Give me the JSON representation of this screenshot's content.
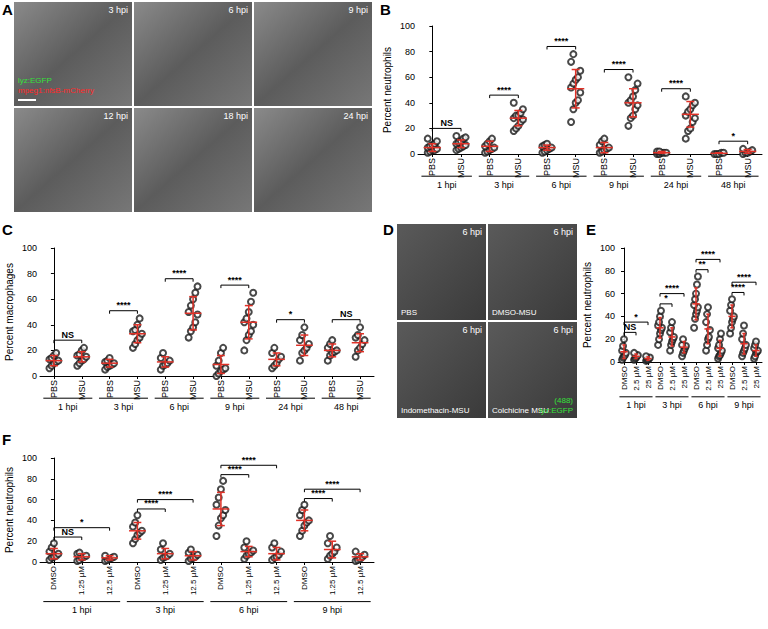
{
  "chart_data": [
    {
      "panel": "B",
      "type": "scatter",
      "y_label": "Percent neutrophils",
      "ylim": [
        0,
        100
      ],
      "yticks": [
        0,
        20,
        40,
        60,
        80,
        100
      ],
      "grid": false,
      "categories": [
        "PBS",
        "MSU",
        "PBS",
        "MSU",
        "PBS",
        "MSU",
        "PBS",
        "MSU",
        "PBS",
        "MSU",
        "PBS",
        "MSU"
      ],
      "groups": [
        {
          "label": "1 hpi",
          "members": [
            0,
            1
          ]
        },
        {
          "label": "3 hpi",
          "members": [
            2,
            3
          ]
        },
        {
          "label": "6 hpi",
          "members": [
            4,
            5
          ]
        },
        {
          "label": "9 hpi",
          "members": [
            6,
            7
          ]
        },
        {
          "label": "24 hpi",
          "members": [
            8,
            9
          ]
        },
        {
          "label": "48 hpi",
          "members": [
            10,
            11
          ]
        }
      ],
      "series": [
        {
          "type": "scatter",
          "marker": "open_circle",
          "color": "#1a1a1a",
          "values": [
            [
              1,
              2,
              3,
              3,
              4,
              5,
              6,
              7,
              8,
              10,
              12
            ],
            [
              3,
              4,
              5,
              6,
              7,
              8,
              9,
              10,
              12,
              13,
              14
            ],
            [
              1,
              2,
              3,
              4,
              5,
              6,
              8,
              10,
              12
            ],
            [
              18,
              20,
              22,
              25,
              27,
              28,
              30,
              30,
              32,
              35,
              40
            ],
            [
              1,
              2,
              3,
              4,
              5,
              6,
              7,
              8
            ],
            [
              25,
              35,
              40,
              42,
              48,
              52,
              55,
              58,
              60,
              65,
              72,
              78
            ],
            [
              1,
              2,
              3,
              4,
              5,
              7,
              10,
              12
            ],
            [
              22,
              28,
              30,
              35,
              38,
              40,
              42,
              45,
              50,
              55,
              60
            ],
            [
              0,
              0,
              1,
              1,
              1,
              2,
              2
            ],
            [
              12,
              18,
              20,
              25,
              28,
              30,
              33,
              35,
              38,
              40,
              45
            ],
            [
              0,
              0,
              0,
              1,
              1
            ],
            [
              0,
              1,
              1,
              2,
              3,
              4
            ]
          ]
        },
        {
          "type": "mean_sd",
          "color": "#e03127",
          "values": [
            5,
            8,
            6,
            28,
            5,
            51,
            5,
            40,
            1,
            31,
            0.5,
            2
          ],
          "sd": [
            3,
            3,
            4,
            6,
            2,
            15,
            4,
            11,
            1,
            10,
            0.5,
            1.5
          ]
        }
      ],
      "comparisons": [
        {
          "from": 0,
          "to": 1,
          "label": "NS"
        },
        {
          "from": 2,
          "to": 3,
          "label": "****"
        },
        {
          "from": 4,
          "to": 5,
          "label": "****"
        },
        {
          "from": 6,
          "to": 7,
          "label": "****"
        },
        {
          "from": 8,
          "to": 9,
          "label": "****"
        },
        {
          "from": 10,
          "to": 11,
          "label": "*"
        }
      ]
    },
    {
      "panel": "C",
      "type": "scatter",
      "y_label": "Percent macrophages",
      "ylim": [
        0,
        100
      ],
      "yticks": [
        0,
        20,
        40,
        60,
        80,
        100
      ],
      "grid": false,
      "categories": [
        "PBS",
        "MSU",
        "PBS",
        "MSU",
        "PBS",
        "MSU",
        "PBS",
        "MSU",
        "PBS",
        "MSU",
        "PBS",
        "MSU"
      ],
      "groups": [
        {
          "label": "1 hpi",
          "members": [
            0,
            1
          ]
        },
        {
          "label": "3 hpi",
          "members": [
            2,
            3
          ]
        },
        {
          "label": "6 hpi",
          "members": [
            4,
            5
          ]
        },
        {
          "label": "9 hpi",
          "members": [
            6,
            7
          ]
        },
        {
          "label": "24 hpi",
          "members": [
            8,
            9
          ]
        },
        {
          "label": "48 hpi",
          "members": [
            10,
            11
          ]
        }
      ],
      "series": [
        {
          "type": "scatter",
          "marker": "open_circle",
          "color": "#1a1a1a",
          "values": [
            [
              6,
              8,
              10,
              11,
              12,
              13,
              14,
              16,
              18
            ],
            [
              8,
              10,
              12,
              13,
              15,
              16,
              17,
              20,
              22
            ],
            [
              5,
              7,
              8,
              9,
              10,
              11,
              12,
              14
            ],
            [
              22,
              25,
              28,
              30,
              33,
              35,
              36,
              40,
              45
            ],
            [
              5,
              8,
              9,
              10,
              12,
              14,
              18
            ],
            [
              30,
              35,
              38,
              42,
              48,
              50,
              55,
              60,
              65,
              70
            ],
            [
              0,
              2,
              4,
              5,
              6,
              8,
              12,
              18,
              22
            ],
            [
              20,
              28,
              32,
              35,
              40,
              42,
              45,
              50,
              58,
              65
            ],
            [
              6,
              8,
              10,
              13,
              15,
              18,
              22
            ],
            [
              12,
              18,
              20,
              22,
              25,
              28,
              32,
              38
            ],
            [
              12,
              16,
              18,
              19,
              20,
              22,
              25,
              28
            ],
            [
              15,
              20,
              22,
              25,
              28,
              30,
              32,
              38
            ]
          ]
        },
        {
          "type": "mean_sd",
          "color": "#e03127",
          "values": [
            12,
            15,
            10,
            33,
            11,
            49,
            9,
            42,
            13,
            24,
            20,
            26
          ],
          "sd": [
            4,
            4,
            3,
            7,
            4,
            13,
            7,
            13,
            5,
            8,
            5,
            7
          ]
        }
      ],
      "comparisons": [
        {
          "from": 0,
          "to": 1,
          "label": "NS"
        },
        {
          "from": 2,
          "to": 3,
          "label": "****"
        },
        {
          "from": 4,
          "to": 5,
          "label": "****"
        },
        {
          "from": 6,
          "to": 7,
          "label": "****"
        },
        {
          "from": 8,
          "to": 9,
          "label": "*"
        },
        {
          "from": 10,
          "to": 11,
          "label": "NS"
        }
      ]
    },
    {
      "panel": "E",
      "type": "scatter",
      "y_label": "Percent neutrophils",
      "ylim": [
        0,
        100
      ],
      "yticks": [
        0,
        20,
        40,
        60,
        80,
        100
      ],
      "grid": false,
      "categories": [
        "DMSO",
        "2.5 µM",
        "25 µM",
        "DMSO",
        "2.5 µM",
        "25 µM",
        "DMSO",
        "2.5 µM",
        "25 µM",
        "DMSO",
        "2.5 µM",
        "25 µM"
      ],
      "groups": [
        {
          "label": "1 hpi",
          "members": [
            0,
            1,
            2
          ]
        },
        {
          "label": "3 hpi",
          "members": [
            3,
            4,
            5
          ]
        },
        {
          "label": "6 hpi",
          "members": [
            6,
            7,
            8
          ]
        },
        {
          "label": "9 hpi",
          "members": [
            9,
            10,
            11
          ]
        }
      ],
      "series": [
        {
          "type": "scatter",
          "marker": "open_circle",
          "color": "#1a1a1a",
          "values": [
            [
              2,
              4,
              5,
              6,
              8,
              10,
              14,
              20
            ],
            [
              2,
              3,
              4,
              5,
              6,
              8
            ],
            [
              1,
              2,
              2,
              3,
              4,
              5
            ],
            [
              15,
              20,
              25,
              28,
              30,
              32,
              35,
              40,
              45
            ],
            [
              10,
              15,
              18,
              20,
              22,
              26,
              30,
              35
            ],
            [
              5,
              8,
              10,
              12,
              14,
              15,
              20
            ],
            [
              30,
              38,
              42,
              45,
              48,
              50,
              55,
              60,
              68,
              75
            ],
            [
              10,
              15,
              20,
              22,
              28,
              35,
              42,
              48
            ],
            [
              3,
              5,
              6,
              8,
              10,
              12,
              15,
              20,
              25
            ],
            [
              25,
              30,
              35,
              38,
              40,
              45,
              50,
              55
            ],
            [
              5,
              8,
              10,
              12,
              15,
              20,
              25,
              32
            ],
            [
              3,
              5,
              8,
              9,
              10,
              12,
              15,
              18
            ]
          ]
        },
        {
          "type": "mean_sd",
          "color": "#e03127",
          "values": [
            9,
            5,
            3,
            30,
            22,
            13,
            51,
            29,
            12,
            40,
            16,
            10
          ],
          "sd": [
            6,
            2,
            1.5,
            9,
            8,
            5,
            14,
            13,
            7,
            10,
            9,
            5
          ]
        }
      ],
      "comparisons": [
        {
          "from": 0,
          "to": 1,
          "label": "NS"
        },
        {
          "from": 0,
          "to": 2,
          "label": "*"
        },
        {
          "from": 3,
          "to": 4,
          "label": "*"
        },
        {
          "from": 3,
          "to": 5,
          "label": "****"
        },
        {
          "from": 6,
          "to": 7,
          "label": "**"
        },
        {
          "from": 6,
          "to": 8,
          "label": "****"
        },
        {
          "from": 9,
          "to": 10,
          "label": "****"
        },
        {
          "from": 9,
          "to": 11,
          "label": "****"
        }
      ]
    },
    {
      "panel": "F",
      "type": "scatter",
      "y_label": "Percent neutrophils",
      "ylim": [
        0,
        100
      ],
      "yticks": [
        0,
        20,
        40,
        60,
        80,
        100
      ],
      "grid": false,
      "categories": [
        "DMSO",
        "1.25 µM",
        "12.5 µM",
        "DMSO",
        "1.25 µM",
        "12.5 µM",
        "DMSO",
        "1.25 µM",
        "12.5 µM",
        "DMSO",
        "1.25 µM",
        "12.5 µM"
      ],
      "groups": [
        {
          "label": "1 hpi",
          "members": [
            0,
            1,
            2
          ]
        },
        {
          "label": "3 hpi",
          "members": [
            3,
            4,
            5
          ]
        },
        {
          "label": "6 hpi",
          "members": [
            6,
            7,
            8
          ]
        },
        {
          "label": "9 hpi",
          "members": [
            9,
            10,
            11
          ]
        }
      ],
      "series": [
        {
          "type": "scatter",
          "marker": "open_circle",
          "color": "#1a1a1a",
          "values": [
            [
              2,
              4,
              5,
              6,
              8,
              10,
              14,
              18
            ],
            [
              1,
              2,
              4,
              5,
              6,
              8,
              9
            ],
            [
              1,
              2,
              3,
              4,
              5,
              6
            ],
            [
              18,
              22,
              26,
              28,
              30,
              34,
              38,
              45
            ],
            [
              2,
              4,
              5,
              6,
              8,
              12,
              18
            ],
            [
              1,
              3,
              4,
              5,
              7,
              9,
              12
            ],
            [
              25,
              35,
              42,
              45,
              50,
              55,
              62,
              70,
              78
            ],
            [
              3,
              6,
              8,
              9,
              11,
              14,
              20
            ],
            [
              2,
              4,
              5,
              7,
              10,
              14,
              18
            ],
            [
              25,
              30,
              35,
              38,
              40,
              45,
              50,
              55
            ],
            [
              3,
              6,
              8,
              10,
              14,
              18,
              25
            ],
            [
              1,
              2,
              3,
              5,
              7,
              10
            ]
          ]
        },
        {
          "type": "mean_sd",
          "color": "#e03127",
          "values": [
            8,
            5,
            4,
            30,
            8,
            6,
            51,
            10,
            8,
            40,
            12,
            5
          ],
          "sd": [
            5,
            3,
            2,
            8,
            5,
            4,
            16,
            5,
            6,
            10,
            8,
            3
          ]
        }
      ],
      "comparisons": [
        {
          "from": 0,
          "to": 1,
          "label": "NS"
        },
        {
          "from": 0,
          "to": 2,
          "label": "*"
        },
        {
          "from": 3,
          "to": 4,
          "label": "****"
        },
        {
          "from": 3,
          "to": 5,
          "label": "****"
        },
        {
          "from": 6,
          "to": 7,
          "label": "****"
        },
        {
          "from": 6,
          "to": 8,
          "label": "****"
        },
        {
          "from": 9,
          "to": 10,
          "label": "****"
        },
        {
          "from": 9,
          "to": 11,
          "label": "****"
        }
      ]
    }
  ],
  "figure": {
    "image_panels": [
      {
        "panel": "A",
        "tiles": [
          {
            "time": "3 hpi",
            "legend": [
              {
                "text": "lyz:EGFP",
                "color": "#35e03a"
              },
              {
                "text": "mpeg1:nfsB-mCherry",
                "color": "#ff2a2a"
              }
            ]
          },
          {
            "time": "6 hpi"
          },
          {
            "time": "9 hpi"
          },
          {
            "time": "12 hpi"
          },
          {
            "time": "18 hpi"
          },
          {
            "time": "24 hpi"
          }
        ]
      },
      {
        "panel": "D",
        "tiles": [
          {
            "time": "6 hpi",
            "caption": "PBS"
          },
          {
            "time": "6 hpi",
            "caption": "DMSO-MSU"
          },
          {
            "time": "6 hpi",
            "caption": "Indomethacin-MSU"
          },
          {
            "time": "6 hpi",
            "caption": "Colchicine MSU",
            "legend": [
              {
                "text": "(488)",
                "color": "#35e03a"
              },
              {
                "text": "lyz:EGFP",
                "color": "#35e03a"
              }
            ]
          }
        ]
      }
    ]
  }
}
